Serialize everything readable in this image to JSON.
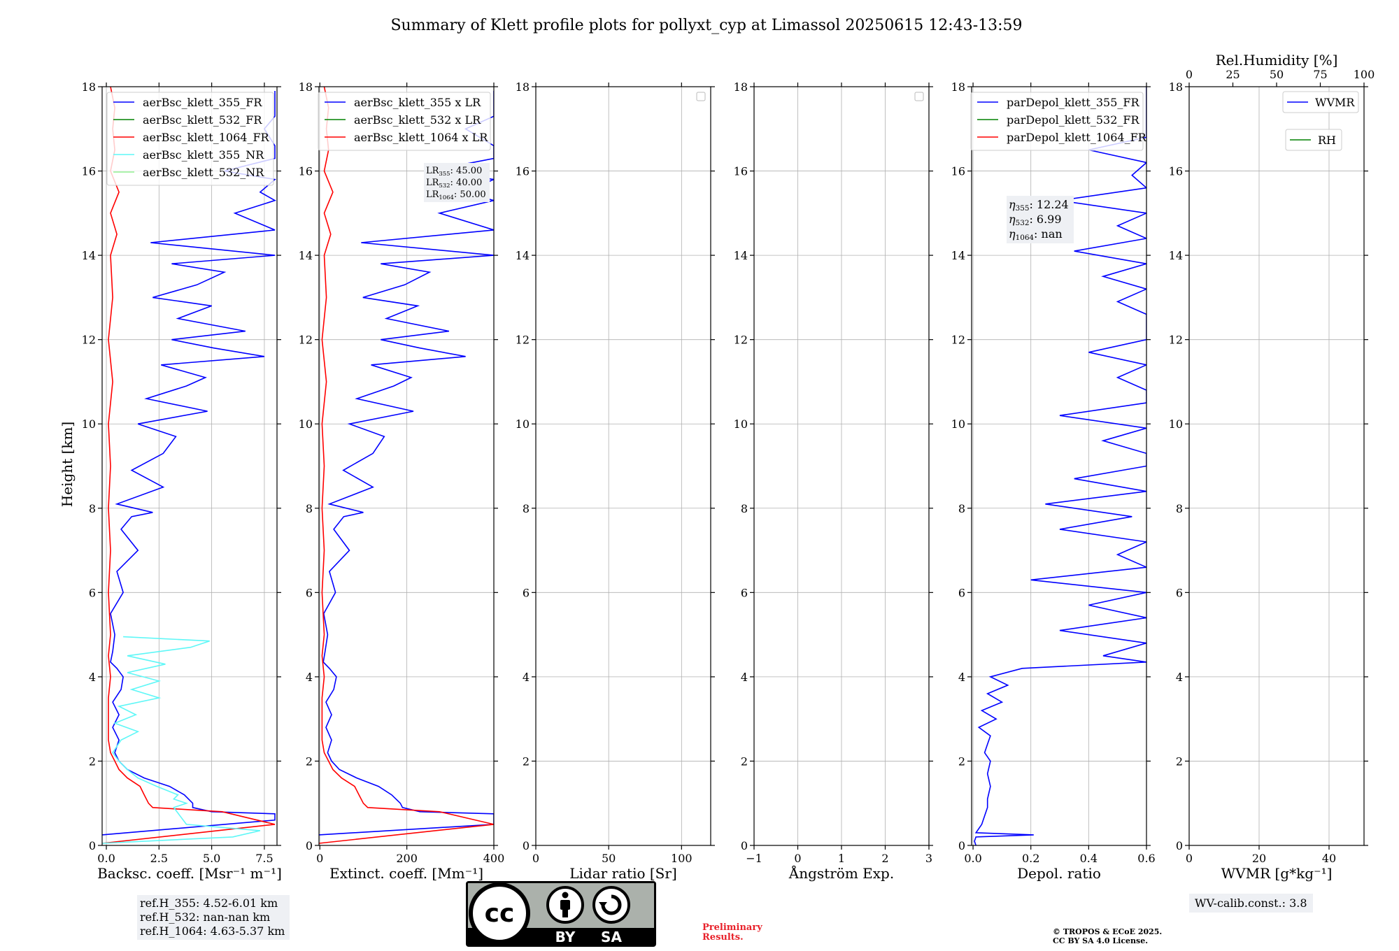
{
  "title": "Summary of Klett profile plots for pollyxt_cyp at Limassol 20250615 12:43-13:59",
  "ylabel": "Height [km]",
  "colors": {
    "blue": "#0000ff",
    "green": "#008000",
    "red": "#ff0000",
    "cyan": "#5ef7f7",
    "lightgreen": "#90ee90",
    "grid": "#b0b0b0"
  },
  "chart_data": [
    {
      "type": "line",
      "panel": "backscatter",
      "xlabel": "Backsc. coeff. [Msr⁻¹ m⁻¹]",
      "xlim": [
        -0.2,
        8.1
      ],
      "xticks": [
        "0.0",
        "2.5",
        "5.0",
        "7.5"
      ],
      "xtick_values": [
        0,
        2.5,
        5.0,
        7.5
      ],
      "ylim": [
        0,
        18
      ],
      "yticks": [
        "0",
        "2",
        "4",
        "6",
        "8",
        "10",
        "12",
        "14",
        "16",
        "18"
      ],
      "grid": true,
      "legend_position": "top-right",
      "series": [
        {
          "name": "aerBsc_klett_355_FR",
          "color": "#0000ff",
          "y": [
            0.25,
            0.6,
            0.75,
            0.8,
            0.9,
            1.0,
            1.2,
            1.4,
            1.6,
            1.8,
            2.0,
            2.2,
            2.5,
            2.8,
            3.1,
            3.4,
            3.7,
            4.0,
            4.2,
            4.35,
            4.6,
            5.0,
            5.5,
            6.0,
            6.5,
            7.0,
            7.5,
            7.8,
            7.9,
            8.1,
            8.5,
            8.9,
            9.3,
            9.7,
            10.0,
            10.3,
            10.6,
            10.9,
            11.1,
            11.4,
            11.6,
            11.8,
            12.0,
            12.2,
            12.5,
            12.8,
            13.0,
            13.3,
            13.6,
            13.8,
            14.0,
            14.3,
            14.6,
            15.0,
            15.3,
            15.5,
            15.8,
            16.0,
            16.3,
            16.6,
            17.0,
            17.3,
            17.6,
            17.9
          ],
          "x": [
            -0.2,
            8.0,
            8.0,
            5.0,
            4.1,
            4.1,
            3.7,
            3.0,
            1.8,
            1.0,
            0.6,
            0.4,
            0.6,
            0.3,
            0.6,
            0.3,
            0.7,
            0.8,
            0.5,
            0.2,
            0.3,
            0.4,
            0.2,
            0.8,
            0.5,
            1.5,
            0.7,
            1.2,
            2.2,
            0.5,
            2.7,
            1.2,
            2.7,
            3.3,
            1.5,
            4.8,
            1.9,
            3.8,
            4.7,
            2.6,
            7.5,
            5.1,
            3.1,
            6.6,
            3.4,
            5.0,
            2.2,
            4.3,
            5.6,
            3.1,
            8.0,
            2.1,
            8.0,
            6.1,
            8.0,
            7.3,
            8.0,
            5.6,
            8.0,
            8.0,
            7.5,
            8.0,
            8.0,
            8.0
          ]
        },
        {
          "name": "aerBsc_klett_532_FR",
          "color": "#008000",
          "y": [],
          "x": []
        },
        {
          "name": "aerBsc_klett_1064_FR",
          "color": "#ff0000",
          "y": [
            0.05,
            0.5,
            0.8,
            0.9,
            1.0,
            1.2,
            1.4,
            1.6,
            1.8,
            2.0,
            2.2,
            2.5,
            3.0,
            3.5,
            4.0,
            4.5,
            5.0,
            6.0,
            7.0,
            8.0,
            9.0,
            10.0,
            11.0,
            12.0,
            13.0,
            14.0,
            14.5,
            15.0,
            15.5,
            16.0,
            16.5,
            17.0,
            17.5,
            18.0
          ],
          "x": [
            -0.2,
            8.0,
            5.5,
            2.2,
            2.0,
            1.8,
            1.6,
            1.0,
            0.6,
            0.4,
            0.2,
            0.1,
            0.1,
            0.1,
            0.2,
            0.1,
            0.2,
            0.1,
            0.2,
            0.1,
            0.2,
            0.1,
            0.3,
            0.1,
            0.3,
            0.2,
            0.5,
            0.2,
            0.6,
            0.2,
            0.4,
            0.3,
            0.4,
            0.2
          ]
        },
        {
          "name": "aerBsc_klett_355_NR",
          "color": "#5ef7f7",
          "y": [
            0.05,
            0.2,
            0.35,
            0.5,
            0.7,
            0.9,
            1.0,
            1.1,
            1.2,
            1.4,
            1.6,
            1.8,
            2.0,
            2.2,
            2.5,
            2.7,
            2.9,
            3.1,
            3.3,
            3.5,
            3.7,
            3.9,
            4.1,
            4.3,
            4.5,
            4.7,
            4.85,
            4.95
          ],
          "x": [
            -0.2,
            6.0,
            7.3,
            3.8,
            3.5,
            3.2,
            3.8,
            3.2,
            3.4,
            2.4,
            1.5,
            1.0,
            0.6,
            0.3,
            0.7,
            1.5,
            0.4,
            1.4,
            0.6,
            2.5,
            1.2,
            2.5,
            1.0,
            2.8,
            1.0,
            4.0,
            4.9,
            0.8
          ]
        },
        {
          "name": "aerBsc_klett_532_NR",
          "color": "#90ee90",
          "y": [],
          "x": []
        }
      ]
    },
    {
      "type": "line",
      "panel": "extinction",
      "xlabel": "Extinct. coeff. [Mm⁻¹]",
      "xlim": [
        -2,
        400
      ],
      "xticks": [
        "0",
        "200",
        "400"
      ],
      "xtick_values": [
        0,
        200,
        400
      ],
      "ylim": [
        0,
        18
      ],
      "yticks": [
        "0",
        "2",
        "4",
        "6",
        "8",
        "10",
        "12",
        "14",
        "16",
        "18"
      ],
      "grid": true,
      "legend_position": "top-right",
      "series": [
        {
          "name": "aerBsc_klett_355 x LR",
          "color": "#0000ff",
          "y": [
            0.25,
            0.5,
            0.75,
            0.8,
            0.9,
            1.0,
            1.2,
            1.4,
            1.6,
            1.8,
            2.0,
            2.2,
            2.5,
            2.8,
            3.1,
            3.4,
            3.7,
            4.0,
            4.2,
            4.35,
            4.6,
            5.0,
            5.5,
            6.0,
            6.5,
            7.0,
            7.5,
            7.8,
            7.9,
            8.1,
            8.5,
            8.9,
            9.3,
            9.7,
            10.0,
            10.3,
            10.6,
            10.9,
            11.1,
            11.4,
            11.6,
            11.8,
            12.0,
            12.2,
            12.5,
            12.8,
            13.0,
            13.3,
            13.6,
            13.8,
            14.0,
            14.3,
            14.6,
            15.0,
            15.3,
            15.5,
            15.8,
            16.0,
            16.3,
            16.6,
            17.0,
            17.3,
            17.6,
            17.9
          ],
          "x": [
            -2,
            400,
            400,
            230,
            190,
            185,
            165,
            135,
            85,
            45,
            27,
            18,
            27,
            14,
            27,
            14,
            32,
            38,
            22,
            8,
            12,
            18,
            9,
            36,
            22,
            68,
            32,
            55,
            100,
            22,
            122,
            54,
            122,
            148,
            68,
            215,
            85,
            170,
            210,
            118,
            335,
            230,
            140,
            297,
            153,
            225,
            99,
            195,
            252,
            140,
            400,
            95,
            400,
            275,
            400,
            330,
            400,
            250,
            400,
            400,
            335,
            400,
            400,
            400
          ]
        },
        {
          "name": "aerBsc_klett_532 x LR",
          "color": "#008000",
          "y": [],
          "x": []
        },
        {
          "name": "aerBsc_klett_1064 x LR",
          "color": "#ff0000",
          "y": [
            0.05,
            0.5,
            0.8,
            0.9,
            1.0,
            1.2,
            1.4,
            1.6,
            1.8,
            2.0,
            2.2,
            2.5,
            3.0,
            3.5,
            4.0,
            4.5,
            5.0,
            6.0,
            7.0,
            8.0,
            9.0,
            10.0,
            11.0,
            12.0,
            13.0,
            14.0,
            14.5,
            15.0,
            15.5,
            16.0,
            16.5,
            17.0,
            17.5,
            18.0
          ],
          "x": [
            -2,
            400,
            275,
            110,
            100,
            90,
            80,
            50,
            30,
            20,
            10,
            5,
            5,
            5,
            10,
            5,
            10,
            5,
            10,
            5,
            10,
            5,
            15,
            5,
            15,
            10,
            25,
            10,
            30,
            10,
            20,
            15,
            20,
            10
          ]
        }
      ],
      "annotation": [
        "LR355: 45.00",
        "LR532: 40.00",
        "LR1064: 50.00"
      ]
    },
    {
      "type": "line",
      "panel": "lidar-ratio",
      "xlabel": "Lidar ratio [Sr]",
      "xlim": [
        0,
        120
      ],
      "xticks": [
        "0",
        "50",
        "100"
      ],
      "xtick_values": [
        0,
        50,
        100
      ],
      "ylim": [
        0,
        18
      ],
      "yticks": [
        "0",
        "2",
        "4",
        "6",
        "8",
        "10",
        "12",
        "14",
        "16",
        "18"
      ],
      "grid": true,
      "series": []
    },
    {
      "type": "line",
      "panel": "angstrom",
      "xlabel": "Ångström Exp.",
      "xlim": [
        -1,
        3
      ],
      "xticks": [
        "−1",
        "0",
        "1",
        "2",
        "3"
      ],
      "xtick_values": [
        -1,
        0,
        1,
        2,
        3
      ],
      "ylim": [
        0,
        18
      ],
      "yticks": [
        "0",
        "2",
        "4",
        "6",
        "8",
        "10",
        "12",
        "14",
        "16",
        "18"
      ],
      "grid": true,
      "series": []
    },
    {
      "type": "line",
      "panel": "depolarization",
      "xlabel": "Depol. ratio",
      "xlim": [
        -0.005,
        0.6
      ],
      "xticks": [
        "0.0",
        "0.2",
        "0.4",
        "0.6"
      ],
      "xtick_values": [
        0,
        0.2,
        0.4,
        0.6
      ],
      "ylim": [
        0,
        18
      ],
      "yticks": [
        "0",
        "2",
        "4",
        "6",
        "8",
        "10",
        "12",
        "14",
        "16",
        "18"
      ],
      "grid": true,
      "legend_position": "top-right",
      "series": [
        {
          "name": "parDepol_klett_355_FR",
          "color": "#0000ff",
          "y": [
            0.0,
            0.1,
            0.2,
            0.25,
            0.3,
            0.5,
            0.7,
            0.9,
            1.1,
            1.4,
            1.7,
            2.0,
            2.2,
            2.4,
            2.6,
            2.8,
            3.0,
            3.2,
            3.4,
            3.6,
            3.8,
            4.0,
            4.2,
            4.35,
            4.5,
            4.8,
            5.1,
            5.4,
            5.7,
            6.0,
            6.3,
            6.6,
            6.9,
            7.2,
            7.5,
            7.8,
            8.1,
            8.4,
            8.7,
            9.0,
            9.3,
            9.6,
            9.9,
            10.2,
            10.5,
            10.8,
            11.1,
            11.4,
            11.7,
            12.0,
            12.3,
            12.6,
            12.9,
            13.2,
            13.5,
            13.8,
            14.1,
            14.4,
            14.7,
            15.0,
            15.3,
            15.6,
            15.9,
            16.2,
            16.5,
            16.8,
            17.1,
            17.4,
            17.7,
            18.0
          ],
          "x": [
            0.01,
            0.005,
            0.01,
            0.21,
            0.01,
            0.03,
            0.04,
            0.05,
            0.05,
            0.06,
            0.05,
            0.06,
            0.04,
            0.05,
            0.06,
            0.02,
            0.08,
            0.03,
            0.1,
            0.05,
            0.12,
            0.06,
            0.17,
            0.6,
            0.45,
            0.6,
            0.3,
            0.6,
            0.4,
            0.6,
            0.2,
            0.6,
            0.5,
            0.6,
            0.3,
            0.55,
            0.25,
            0.6,
            0.35,
            0.6,
            0.6,
            0.45,
            0.6,
            0.3,
            0.6,
            0.6,
            0.5,
            0.6,
            0.4,
            0.6,
            0.6,
            0.6,
            0.5,
            0.6,
            0.45,
            0.6,
            0.35,
            0.6,
            0.5,
            0.6,
            0.3,
            0.6,
            0.55,
            0.6,
            0.4,
            0.6,
            0.6,
            0.6,
            0.6,
            0.6
          ]
        },
        {
          "name": "parDepol_klett_532_FR",
          "color": "#008000",
          "y": [],
          "x": []
        },
        {
          "name": "parDepol_klett_1064_FR",
          "color": "#ff0000",
          "y": [],
          "x": []
        }
      ],
      "annotation": [
        "η355: 12.24",
        "η532: 6.99",
        "η1064: nan"
      ]
    },
    {
      "type": "line",
      "panel": "wvmr",
      "xlabel": "WVMR [g*kg⁻¹]",
      "xlim": [
        0,
        50
      ],
      "xticks": [
        "0",
        "20",
        "40"
      ],
      "xtick_values": [
        0,
        20,
        40
      ],
      "x2label": "Rel.Humidity [%]",
      "x2lim": [
        0,
        100
      ],
      "x2ticks": [
        "0",
        "25",
        "50",
        "75",
        "100"
      ],
      "x2tick_values": [
        0,
        25,
        50,
        75,
        100
      ],
      "ylim": [
        0,
        18
      ],
      "yticks": [
        "0",
        "2",
        "4",
        "6",
        "8",
        "10",
        "12",
        "14",
        "16",
        "18"
      ],
      "grid": true,
      "series": [
        {
          "name": "WVMR",
          "color": "#0000ff",
          "y": [],
          "x": []
        },
        {
          "name": "RH",
          "color": "#008000",
          "y": [],
          "x": []
        }
      ]
    }
  ],
  "refbox": [
    "ref.H_355: 4.52-6.01 km",
    "ref.H_532: nan-nan km",
    "ref.H_1064: 4.63-5.37 km"
  ],
  "wv_calib": "WV-calib.const.: 3.8",
  "preliminary": [
    "Preliminary",
    "Results."
  ],
  "copyright": [
    "© TROPOS & ECoE 2025.",
    "CC BY SA 4.0 License."
  ],
  "license_badge": {
    "text_cc": "cc",
    "text_by": "BY",
    "text_sa": "SA",
    "icons": [
      "cc-logo-icon",
      "by-person-icon",
      "sa-share-icon"
    ]
  }
}
